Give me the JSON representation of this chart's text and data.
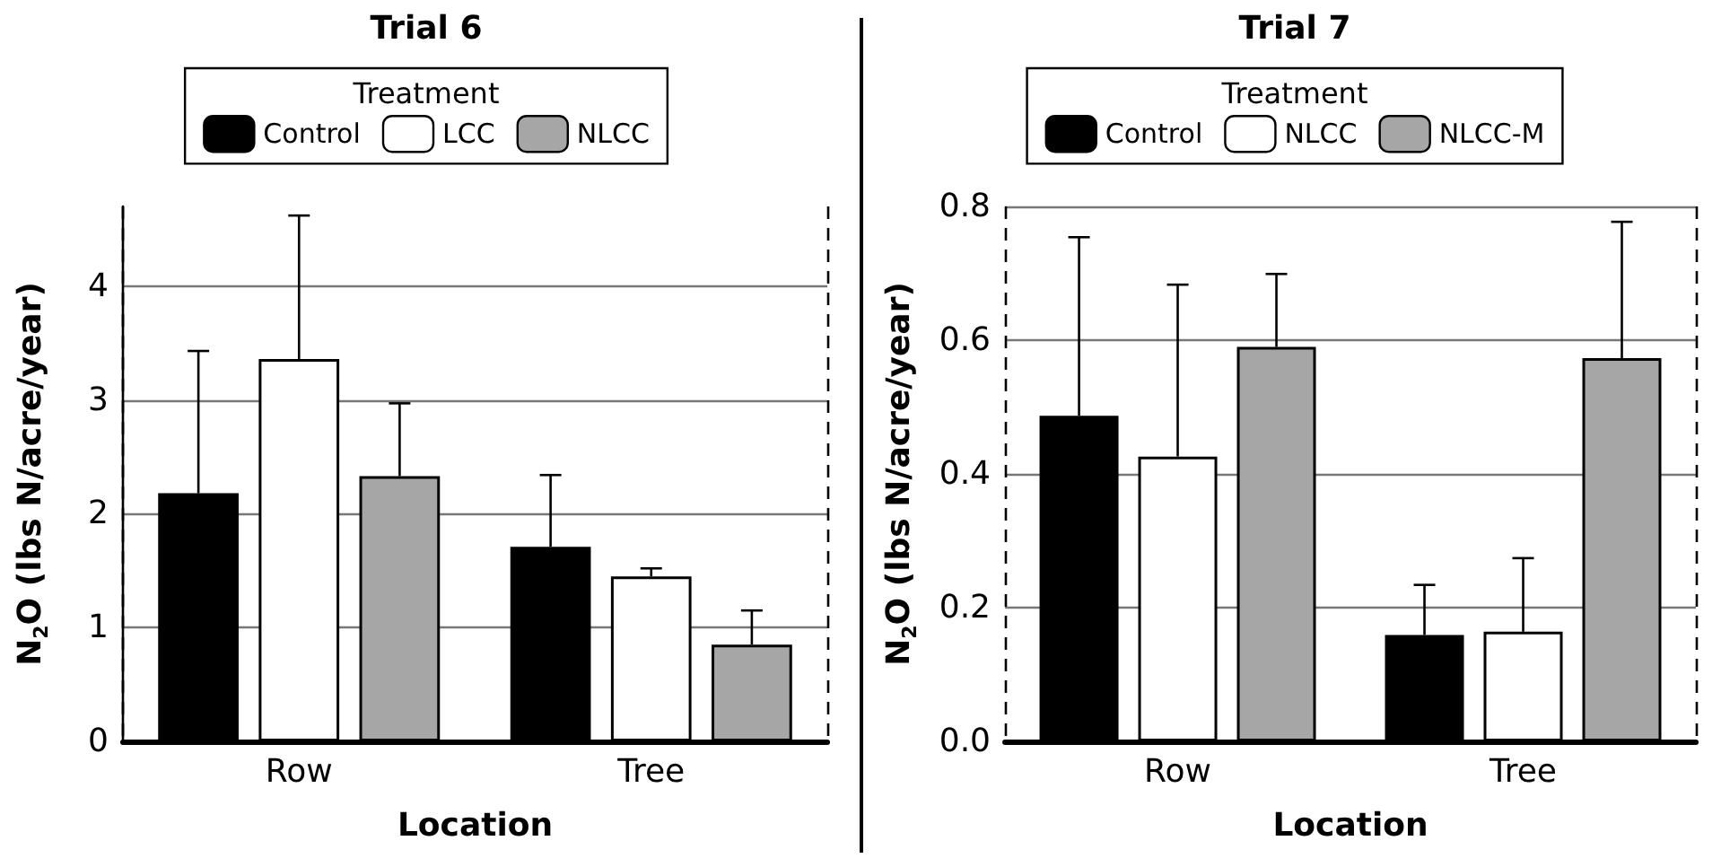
{
  "chart_data": [
    {
      "type": "bar",
      "title": "Trial 6",
      "legend_title": "Treatment",
      "xlabel": "Location",
      "ylabel": "N$_{2}$O (lbs N/acre/year)",
      "categories": [
        "Row",
        "Tree"
      ],
      "series": [
        {
          "name": "Control",
          "color": "#000000",
          "values": [
            2.18,
            1.71
          ],
          "errors": [
            [
              2.18,
              3.43
            ],
            [
              1.71,
              2.34
            ]
          ]
        },
        {
          "name": "LCC",
          "color": "#ffffff",
          "values": [
            3.36,
            1.45
          ],
          "errors": [
            [
              3.36,
              4.62
            ],
            [
              1.45,
              1.52
            ]
          ]
        },
        {
          "name": "NLCC",
          "color": "#a6a6a6",
          "values": [
            2.33,
            0.85
          ],
          "errors": [
            [
              2.33,
              2.97
            ],
            [
              0.85,
              1.15
            ]
          ]
        }
      ],
      "ylim": [
        0,
        4.7
      ],
      "yticks": [
        0,
        1,
        2,
        3,
        4
      ],
      "grid": true,
      "legend": "top"
    },
    {
      "type": "bar",
      "title": "Trial 7",
      "legend_title": "Treatment",
      "xlabel": "Location",
      "ylabel": "N$_{2}$O (lbs N/acre/year)",
      "categories": [
        "Row",
        "Tree"
      ],
      "series": [
        {
          "name": "Control",
          "color": "#000000",
          "values": [
            0.487,
            0.159
          ],
          "errors": [
            [
              0.487,
              0.754
            ],
            [
              0.159,
              0.234
            ]
          ]
        },
        {
          "name": "NLCC",
          "color": "#ffffff",
          "values": [
            0.426,
            0.164
          ],
          "errors": [
            [
              0.426,
              0.683
            ],
            [
              0.164,
              0.274
            ]
          ]
        },
        {
          "name": "NLCC-M",
          "color": "#a6a6a6",
          "values": [
            0.59,
            0.573
          ],
          "errors": [
            [
              0.59,
              0.699
            ],
            [
              0.573,
              0.777
            ]
          ]
        }
      ],
      "ylim": [
        0,
        0.8
      ],
      "yticks": [
        {
          "value": 0,
          "label": "0.0"
        },
        0.2,
        0.4,
        0.6,
        0.8
      ],
      "grid": true,
      "legend": "top"
    }
  ]
}
